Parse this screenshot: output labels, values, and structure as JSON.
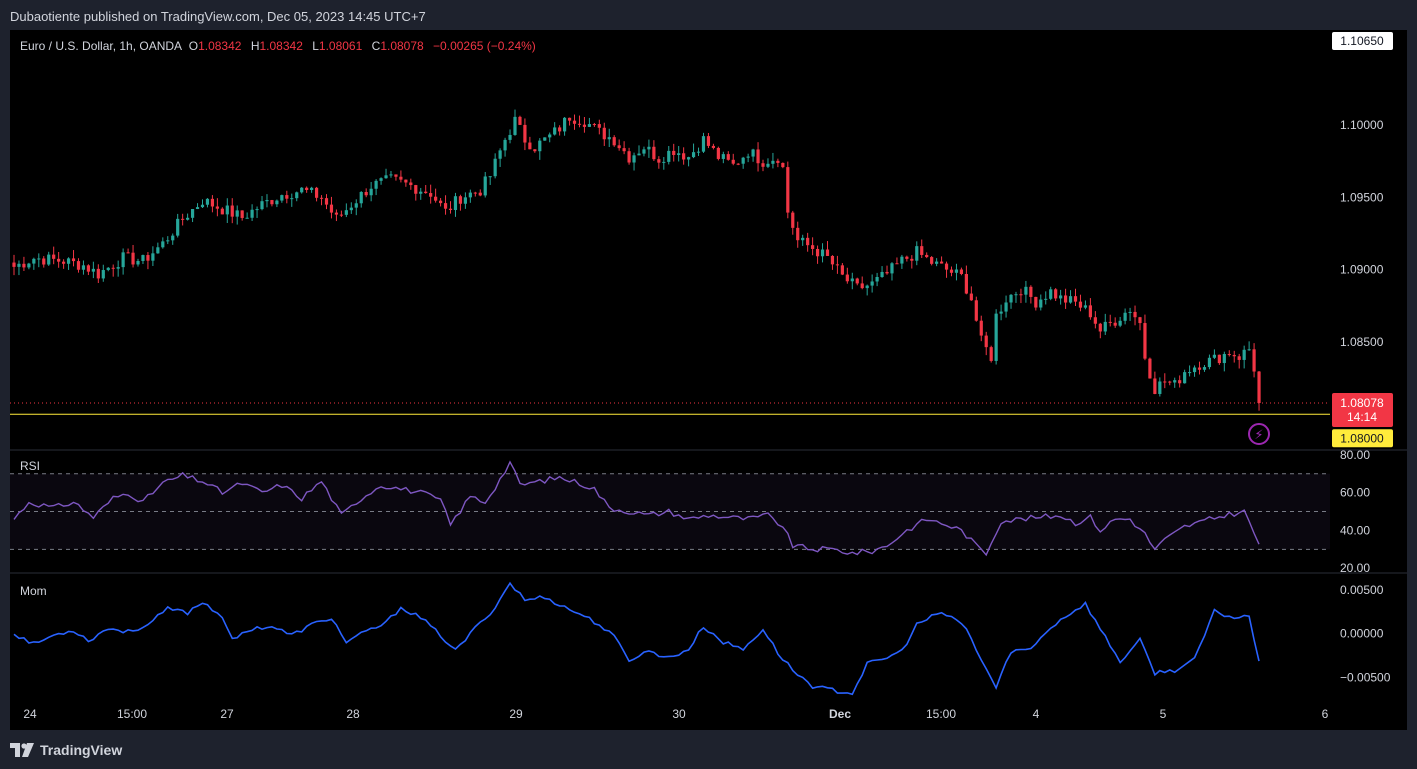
{
  "header": {
    "text": "Dubaotiente published on TradingView.com, Dec 05, 2023 14:45 UTC+7"
  },
  "footer": {
    "brand": "TradingView",
    "logo_icon": "tradingview-logo-icon"
  },
  "legend": {
    "symbol": "Euro / U.S. Dollar, 1h, OANDA",
    "o_label": "O",
    "o_value": "1.08342",
    "h_label": "H",
    "h_value": "1.08342",
    "l_label": "L",
    "l_value": "1.08061",
    "c_label": "C",
    "c_value": "1.08078",
    "change": "−0.00265 (−0.24%)"
  },
  "rsi_label": "RSI",
  "mom_label": "Mom",
  "price_badge": {
    "price": "1.08078",
    "countdown": "14:14"
  },
  "level_badge": "1.08000",
  "top_badge": "1.10650",
  "colors": {
    "up": "#26a69a",
    "down": "#f23645",
    "rsi": "#7e57c2",
    "mom": "#2962ff",
    "level": "#ffeb3b",
    "background": "#000000",
    "frame": "#1e222d"
  },
  "chart_data": [
    {
      "type": "candlestick",
      "title": "Euro / U.S. Dollar, 1h, OANDA",
      "ylim": [
        1.0776,
        1.1065
      ],
      "y_ticks": [
        "1.10000",
        "1.09500",
        "1.09000",
        "1.08500"
      ],
      "x_ticks": [
        "24",
        "15:00",
        "27",
        "28",
        "29",
        "30",
        "Dec",
        "15:00",
        "4",
        "5",
        "6"
      ],
      "horizontal_level": 1.08,
      "last_price": 1.08078,
      "anchors": [
        [
          0,
          1.0902
        ],
        [
          4,
          1.0908
        ],
        [
          10,
          1.0906
        ],
        [
          14,
          1.0903
        ],
        [
          17,
          1.0897
        ],
        [
          22,
          1.0908
        ],
        [
          26,
          1.0906
        ],
        [
          30,
          1.0918
        ],
        [
          34,
          1.0935
        ],
        [
          38,
          1.0948
        ],
        [
          42,
          1.0942
        ],
        [
          46,
          1.0936
        ],
        [
          50,
          1.0945
        ],
        [
          54,
          1.0952
        ],
        [
          58,
          1.0955
        ],
        [
          62,
          1.095
        ],
        [
          65,
          1.0935
        ],
        [
          68,
          1.0945
        ],
        [
          72,
          1.0958
        ],
        [
          76,
          1.0962
        ],
        [
          80,
          1.0958
        ],
        [
          84,
          1.0953
        ],
        [
          87,
          1.094
        ],
        [
          90,
          1.095
        ],
        [
          94,
          1.0955
        ],
        [
          96,
          1.0965
        ],
        [
          99,
          1.099
        ],
        [
          101,
          1.1003
        ],
        [
          103,
          1.099
        ],
        [
          105,
          1.0985
        ],
        [
          108,
          1.0992
        ],
        [
          110,
          1.0998
        ],
        [
          112,
          1.1006
        ],
        [
          115,
          1.1003
        ],
        [
          118,
          1.0995
        ],
        [
          121,
          1.099
        ],
        [
          124,
          1.0978
        ],
        [
          127,
          1.0985
        ],
        [
          130,
          1.0977
        ],
        [
          133,
          1.0983
        ],
        [
          136,
          1.0978
        ],
        [
          139,
          1.099
        ],
        [
          142,
          1.0978
        ],
        [
          145,
          1.0972
        ],
        [
          148,
          1.0982
        ],
        [
          151,
          1.0975
        ],
        [
          154,
          1.0978
        ],
        [
          155,
          1.097
        ],
        [
          156,
          1.094
        ],
        [
          158,
          1.092
        ],
        [
          161,
          1.0915
        ],
        [
          164,
          1.0908
        ],
        [
          167,
          1.0895
        ],
        [
          170,
          1.0887
        ],
        [
          173,
          1.089
        ],
        [
          176,
          1.0897
        ],
        [
          179,
          1.0906
        ],
        [
          182,
          1.0912
        ],
        [
          185,
          1.0905
        ],
        [
          188,
          1.09
        ],
        [
          191,
          1.0895
        ],
        [
          193,
          1.088
        ],
        [
          195,
          1.085
        ],
        [
          197,
          1.084
        ],
        [
          198,
          1.0868
        ],
        [
          200,
          1.088
        ],
        [
          203,
          1.0887
        ],
        [
          206,
          1.0878
        ],
        [
          209,
          1.0885
        ],
        [
          211,
          1.088
        ],
        [
          214,
          1.0877
        ],
        [
          217,
          1.087
        ],
        [
          219,
          1.0858
        ],
        [
          222,
          1.0865
        ],
        [
          225,
          1.0873
        ],
        [
          227,
          1.0863
        ],
        [
          228,
          1.084
        ],
        [
          230,
          1.0818
        ],
        [
          232,
          1.0823
        ],
        [
          234,
          1.082
        ],
        [
          236,
          1.083
        ],
        [
          239,
          1.0835
        ],
        [
          242,
          1.0838
        ],
        [
          245,
          1.0843
        ],
        [
          247,
          1.084
        ],
        [
          249,
          1.0845
        ],
        [
          250,
          1.0832
        ],
        [
          251,
          1.0808
        ]
      ]
    },
    {
      "type": "line",
      "name": "RSI",
      "ylim": [
        18,
        82
      ],
      "y_ticks": [
        "80.00",
        "60.00",
        "40.00",
        "20.00"
      ],
      "bands": [
        30,
        50,
        70
      ],
      "anchors": [
        [
          0,
          46
        ],
        [
          3,
          55
        ],
        [
          8,
          52
        ],
        [
          12,
          55
        ],
        [
          16,
          47
        ],
        [
          20,
          57
        ],
        [
          23,
          60
        ],
        [
          26,
          55
        ],
        [
          30,
          65
        ],
        [
          34,
          69
        ],
        [
          38,
          66
        ],
        [
          42,
          60
        ],
        [
          46,
          65
        ],
        [
          50,
          60
        ],
        [
          54,
          64
        ],
        [
          58,
          57
        ],
        [
          62,
          66
        ],
        [
          66,
          48
        ],
        [
          70,
          57
        ],
        [
          74,
          64
        ],
        [
          78,
          62
        ],
        [
          82,
          60
        ],
        [
          86,
          56
        ],
        [
          88,
          43
        ],
        [
          92,
          58
        ],
        [
          95,
          55
        ],
        [
          98,
          67
        ],
        [
          100,
          76
        ],
        [
          102,
          64
        ],
        [
          106,
          66
        ],
        [
          110,
          68
        ],
        [
          114,
          65
        ],
        [
          117,
          62
        ],
        [
          120,
          52
        ],
        [
          124,
          50
        ],
        [
          128,
          48
        ],
        [
          132,
          50
        ],
        [
          136,
          46
        ],
        [
          140,
          48
        ],
        [
          144,
          47
        ],
        [
          148,
          46
        ],
        [
          152,
          48
        ],
        [
          155,
          42
        ],
        [
          157,
          32
        ],
        [
          161,
          30
        ],
        [
          165,
          30
        ],
        [
          169,
          28
        ],
        [
          173,
          29
        ],
        [
          176,
          32
        ],
        [
          180,
          40
        ],
        [
          184,
          46
        ],
        [
          188,
          43
        ],
        [
          191,
          40
        ],
        [
          194,
          32
        ],
        [
          196,
          28
        ],
        [
          199,
          45
        ],
        [
          203,
          46
        ],
        [
          207,
          47
        ],
        [
          211,
          48
        ],
        [
          214,
          44
        ],
        [
          217,
          47
        ],
        [
          219,
          40
        ],
        [
          222,
          46
        ],
        [
          225,
          46
        ],
        [
          228,
          38
        ],
        [
          230,
          30
        ],
        [
          232,
          35
        ],
        [
          236,
          42
        ],
        [
          240,
          45
        ],
        [
          244,
          48
        ],
        [
          248,
          50
        ],
        [
          251,
          33
        ]
      ]
    },
    {
      "type": "line",
      "name": "Mom",
      "ylim": [
        -0.0076,
        0.0068
      ],
      "y_ticks": [
        "0.00500",
        "0.00000",
        "−0.00500"
      ],
      "anchors": [
        [
          0,
          0.0
        ],
        [
          4,
          -0.0012
        ],
        [
          8,
          -0.0002
        ],
        [
          12,
          0.0004
        ],
        [
          15,
          -0.0008
        ],
        [
          19,
          0.0006
        ],
        [
          23,
          0.0002
        ],
        [
          27,
          0.001
        ],
        [
          31,
          0.0028
        ],
        [
          35,
          0.0024
        ],
        [
          38,
          0.0036
        ],
        [
          42,
          0.002
        ],
        [
          44,
          -0.0008
        ],
        [
          48,
          0.0006
        ],
        [
          52,
          0.0008
        ],
        [
          56,
          -0.0002
        ],
        [
          60,
          0.001
        ],
        [
          64,
          0.0018
        ],
        [
          67,
          -0.001
        ],
        [
          71,
          0.0002
        ],
        [
          75,
          0.0012
        ],
        [
          78,
          0.003
        ],
        [
          82,
          0.0018
        ],
        [
          86,
          -0.0002
        ],
        [
          89,
          -0.002
        ],
        [
          93,
          0.0006
        ],
        [
          97,
          0.003
        ],
        [
          100,
          0.0058
        ],
        [
          103,
          0.0038
        ],
        [
          107,
          0.0042
        ],
        [
          111,
          0.003
        ],
        [
          115,
          0.002
        ],
        [
          118,
          0.001
        ],
        [
          121,
          -0.0004
        ],
        [
          124,
          -0.003
        ],
        [
          128,
          -0.002
        ],
        [
          132,
          -0.0028
        ],
        [
          136,
          -0.0018
        ],
        [
          139,
          0.0008
        ],
        [
          143,
          -0.001
        ],
        [
          147,
          -0.0018
        ],
        [
          151,
          0.0005
        ],
        [
          154,
          -0.0022
        ],
        [
          157,
          -0.0042
        ],
        [
          161,
          -0.006
        ],
        [
          165,
          -0.0065
        ],
        [
          169,
          -0.0068
        ],
        [
          172,
          -0.0035
        ],
        [
          175,
          -0.003
        ],
        [
          179,
          -0.002
        ],
        [
          182,
          0.001
        ],
        [
          186,
          0.0022
        ],
        [
          189,
          0.002
        ],
        [
          192,
          0.0005
        ],
        [
          195,
          -0.003
        ],
        [
          198,
          -0.0062
        ],
        [
          201,
          -0.002
        ],
        [
          205,
          -0.0018
        ],
        [
          208,
          0.0002
        ],
        [
          212,
          0.002
        ],
        [
          216,
          0.0034
        ],
        [
          219,
          0.0005
        ],
        [
          223,
          -0.0032
        ],
        [
          227,
          -0.0008
        ],
        [
          230,
          -0.0045
        ],
        [
          234,
          -0.0042
        ],
        [
          238,
          -0.003
        ],
        [
          242,
          0.0025
        ],
        [
          246,
          0.0018
        ],
        [
          249,
          0.002
        ],
        [
          251,
          -0.003
        ]
      ]
    }
  ]
}
